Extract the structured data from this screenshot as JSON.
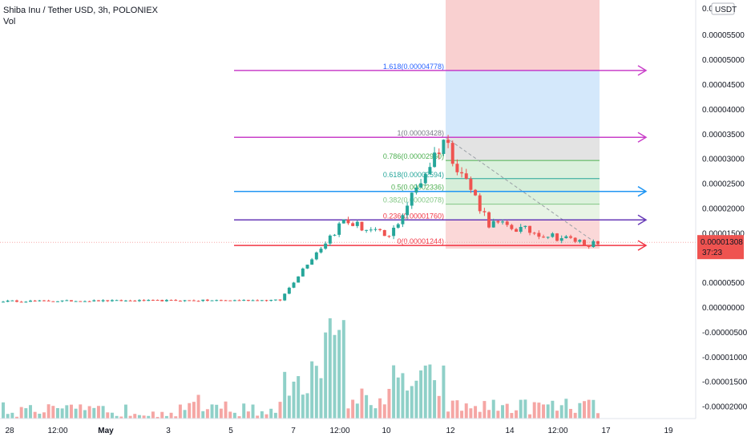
{
  "header": {
    "title": "Shiba Inu / Tether USD, 3h, POLONIEX",
    "indicator": "Vol"
  },
  "price_axis": {
    "currency": "USDT",
    "tick_labels": [
      "0.00005500",
      "0.00005000",
      "0.00004500",
      "0.00004000",
      "0.00003500",
      "0.00003000",
      "0.00002500",
      "0.00002000",
      "0.00001500",
      "0.00000500",
      "0.00000000",
      "-0.00000500",
      "-0.00001000",
      "-0.00001500",
      "-0.00002000"
    ],
    "tick_values": [
      5.5e-05,
      5e-05,
      4.5e-05,
      4e-05,
      3.5e-05,
      3e-05,
      2.5e-05,
      2e-05,
      1.5e-05,
      5e-06,
      0.0,
      -5e-06,
      -1e-05,
      -1.5e-05,
      -2e-05
    ],
    "top_label": "0.0",
    "current_price": "0.00001308",
    "countdown": "37:23"
  },
  "time_axis": {
    "labels": [
      "28",
      "12:00",
      "May",
      "3",
      "5",
      "7",
      "12:00",
      "10",
      "12",
      "14",
      "12:00",
      "17",
      "19"
    ]
  },
  "colors": {
    "up": "#26a69a",
    "down": "#ef5350",
    "vol_up": "#8fd0c8",
    "vol_down": "#f5a6a4",
    "magenta": "#c940c9",
    "blue": "#2196f3",
    "purple": "#673ab7",
    "red": "#f23645",
    "price_badge": "#ef5350"
  },
  "fib_levels": [
    {
      "label": "1.618(0.00004778)",
      "value": 4.778e-05
    },
    {
      "label": "1(0.00003428)",
      "value": 3.428e-05
    },
    {
      "label": "0.786(0.00002960)",
      "value": 2.96e-05
    },
    {
      "label": "0.618(0.00002594)",
      "value": 2.594e-05
    },
    {
      "label": "0.5(0.00002336)",
      "value": 2.336e-05
    },
    {
      "label": "0.382(0.00002078)",
      "value": 2.078e-05
    },
    {
      "label": "0.236(0.00001760)",
      "value": 1.76e-05
    },
    {
      "label": "0(0.00001244)",
      "value": 1.244e-05
    }
  ],
  "chart_data": {
    "type": "candlestick",
    "title": "Shiba Inu / Tether USD, 3h, POLONIEX",
    "y_unit": "USDT",
    "ylim": [
      -2.25e-05,
      6.2e-05
    ],
    "horizontal_rays": [
      {
        "value": 4.778e-05,
        "color": "magenta"
      },
      {
        "value": 3.428e-05,
        "color": "magenta"
      },
      {
        "value": 2.336e-05,
        "color": "blue"
      },
      {
        "value": 1.76e-05,
        "color": "purple"
      },
      {
        "value": 1.244e-05,
        "color": "red"
      }
    ],
    "segments": [
      {
        "name": "flat",
        "n": 62,
        "start": 1.2e-06,
        "end": 1.4e-06
      },
      {
        "name": "rise",
        "n": 6,
        "start": 1.4e-06,
        "end": 9e-06
      },
      {
        "name": "jump",
        "n": 8,
        "start": 9e-06,
        "end": 1.75e-05
      },
      {
        "name": "consolidation",
        "n": 10,
        "start": 1.75e-05,
        "end": 1.4e-05
      },
      {
        "name": "spike",
        "n": 12,
        "start": 1.4e-05,
        "end": 3.4e-05
      },
      {
        "name": "decline",
        "n": 10,
        "start": 3.4e-05,
        "end": 1.7e-05
      },
      {
        "name": "downtrend",
        "n": 24,
        "start": 1.7e-05,
        "end": 1.25e-05
      }
    ]
  }
}
